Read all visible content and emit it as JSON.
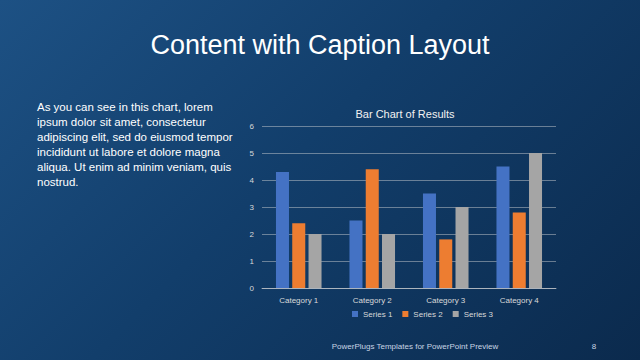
{
  "slide": {
    "title": "Content with Caption Layout",
    "caption": "As you can see in this chart, lorem ipsum dolor sit amet, consectetur adipiscing elit, sed do eiusmod tempor incididunt ut labore et dolore magna aliqua. Ut enim ad minim veniam, quis nostrud.",
    "footer": "PowerPlugs Templates for PowerPoint Preview",
    "page": 8
  },
  "chart_data": {
    "type": "bar",
    "title": "Bar Chart of Results",
    "categories": [
      "Category 1",
      "Category 2",
      "Category 3",
      "Category 4"
    ],
    "series": [
      {
        "name": "Series 1",
        "color": "#4472c4",
        "values": [
          4.3,
          2.5,
          3.5,
          4.5
        ]
      },
      {
        "name": "Series 2",
        "color": "#ed7d31",
        "values": [
          2.4,
          4.4,
          1.8,
          2.8
        ]
      },
      {
        "name": "Series 3",
        "color": "#a5a5a5",
        "values": [
          2,
          2,
          3,
          5
        ]
      }
    ],
    "ylim": [
      0,
      6
    ],
    "yticks": [
      0,
      1,
      2,
      3,
      4,
      5,
      6
    ],
    "grid": true,
    "legend": "bottom"
  }
}
